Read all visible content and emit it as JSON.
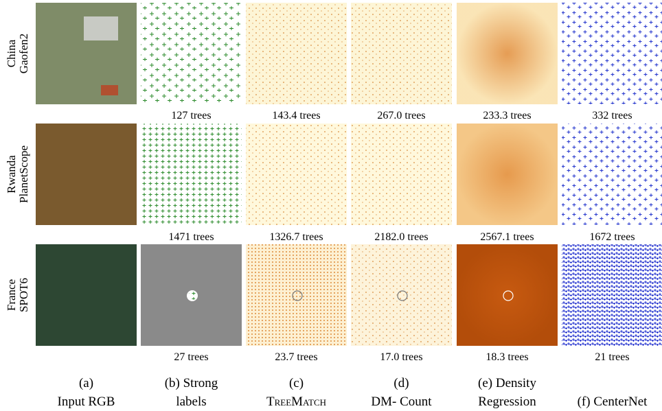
{
  "rows": [
    {
      "label": [
        "China",
        "Gaofen2"
      ],
      "counts": [
        "127 trees",
        "143.4 trees",
        "267.0 trees",
        "233.3 trees",
        "332 trees"
      ]
    },
    {
      "label": [
        "Rwanda",
        "PlanetScope"
      ],
      "counts": [
        "1471 trees",
        "1326.7 trees",
        "2182.0 trees",
        "2567.1 trees",
        "1672 trees"
      ]
    },
    {
      "label": [
        "France",
        "SPOT6"
      ],
      "counts": [
        "27 trees",
        "23.7 trees",
        "17.0 trees",
        "18.3 trees",
        "21 trees"
      ]
    }
  ],
  "columns": [
    [
      "(a)",
      "Input RGB"
    ],
    [
      "(b) Strong",
      "labels"
    ],
    [
      "(c)",
      "TreeMatch"
    ],
    [
      "(d)",
      "DM- Count"
    ],
    [
      "(e) Density",
      "Regression"
    ],
    [
      "(f) CenterNet"
    ]
  ]
}
